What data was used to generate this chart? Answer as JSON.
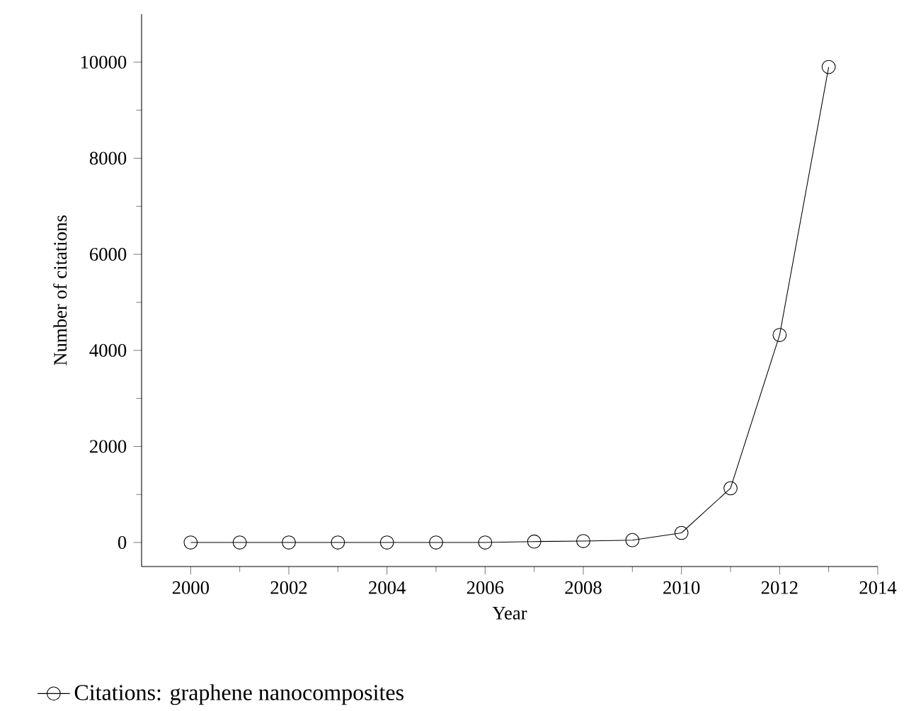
{
  "chart_data": {
    "type": "line",
    "xlabel": "Year",
    "ylabel": "Number of citations",
    "x": [
      2000,
      2001,
      2002,
      2003,
      2004,
      2005,
      2006,
      2007,
      2008,
      2009,
      2010,
      2011,
      2012,
      2013
    ],
    "series": [
      {
        "name": "Citations: graphene nanocomposites",
        "color": "#000000",
        "values": [
          0,
          0,
          0,
          0,
          0,
          0,
          0,
          20,
          30,
          50,
          200,
          1130,
          4320,
          9900
        ]
      }
    ],
    "xlim": [
      1999,
      2014
    ],
    "xticks": [
      2000,
      2002,
      2004,
      2006,
      2008,
      2010,
      2012,
      2014
    ],
    "ylim": [
      -500,
      11000
    ],
    "yticks": [
      0,
      2000,
      4000,
      6000,
      8000,
      10000
    ],
    "grid": false,
    "legend": "bottom left",
    "marker": "circle",
    "line_style": "solid"
  }
}
